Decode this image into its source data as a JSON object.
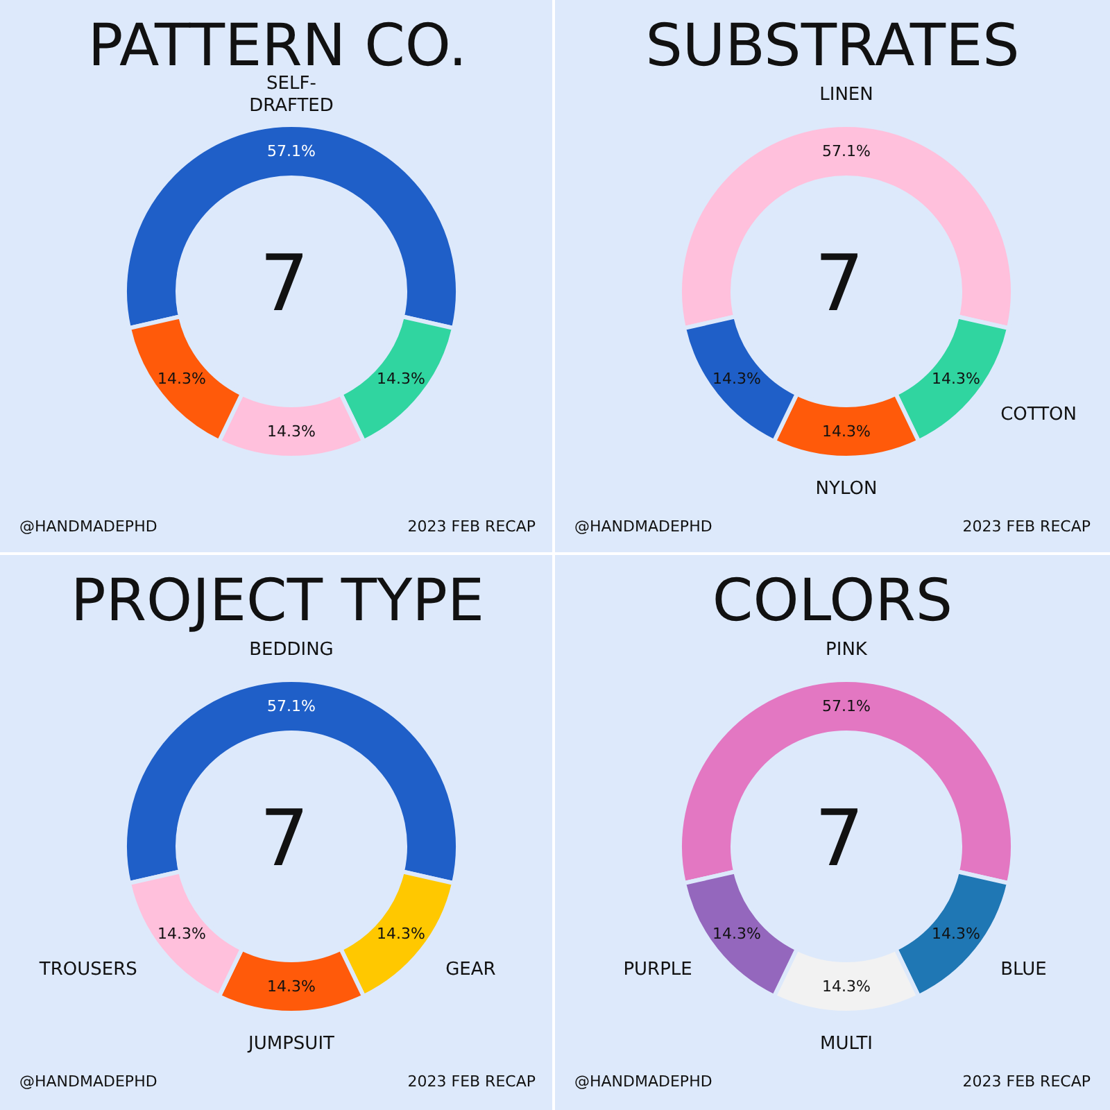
{
  "chart_data": [
    {
      "type": "donut",
      "title": "PATTERN CO.",
      "categories": [
        "SELF-DRAFTED",
        null,
        null,
        null
      ],
      "values": [
        57.1,
        14.3,
        14.3,
        14.3
      ],
      "colors": [
        "#1f5fc8",
        "#30d5a0",
        "#ffc0dc",
        "#ff5a0a"
      ],
      "value_labels": [
        "57.1%",
        "14.3%",
        "14.3%",
        "14.3%"
      ],
      "annotations": [
        "7",
        "@HANDMADEPHD",
        "2023 FEB RECAP"
      ]
    },
    {
      "type": "donut",
      "title": "SUBSTRATES",
      "categories": [
        "LINEN",
        "COTTON",
        "NYLON",
        null
      ],
      "values": [
        57.1,
        14.3,
        14.3,
        14.3
      ],
      "colors": [
        "#ffc0dc",
        "#30d5a0",
        "#ff5a0a",
        "#1f5fc8"
      ],
      "value_labels": [
        "57.1%",
        "14.3%",
        "14.3%",
        "14.3%"
      ],
      "annotations": [
        "7",
        "@HANDMADEPHD",
        "2023 FEB RECAP"
      ]
    },
    {
      "type": "donut",
      "title": "PROJECT TYPE",
      "categories": [
        "BEDDING",
        "GEAR",
        "JUMPSUIT",
        "TROUSERS"
      ],
      "values": [
        57.1,
        14.3,
        14.3,
        14.3
      ],
      "colors": [
        "#1f5fc8",
        "#ffc800",
        "#ff5a0a",
        "#ffc0dc"
      ],
      "value_labels": [
        "57.1%",
        "14.3%",
        "14.3%",
        "14.3%"
      ],
      "annotations": [
        "7",
        "@HANDMADEPHD",
        "2023 FEB RECAP"
      ]
    },
    {
      "type": "donut",
      "title": "COLORS",
      "categories": [
        "PINK",
        "BLUE",
        "MULTI",
        "PURPLE"
      ],
      "values": [
        57.1,
        14.3,
        14.3,
        14.3
      ],
      "colors": [
        "#e377c2",
        "#1f77b4",
        "#f2f2f2",
        "#9467bd"
      ],
      "value_labels": [
        "57.1%",
        "14.3%",
        "14.3%",
        "14.3%"
      ],
      "annotations": [
        "7",
        "@HANDMADEPHD",
        "2023 FEB RECAP"
      ]
    }
  ]
}
